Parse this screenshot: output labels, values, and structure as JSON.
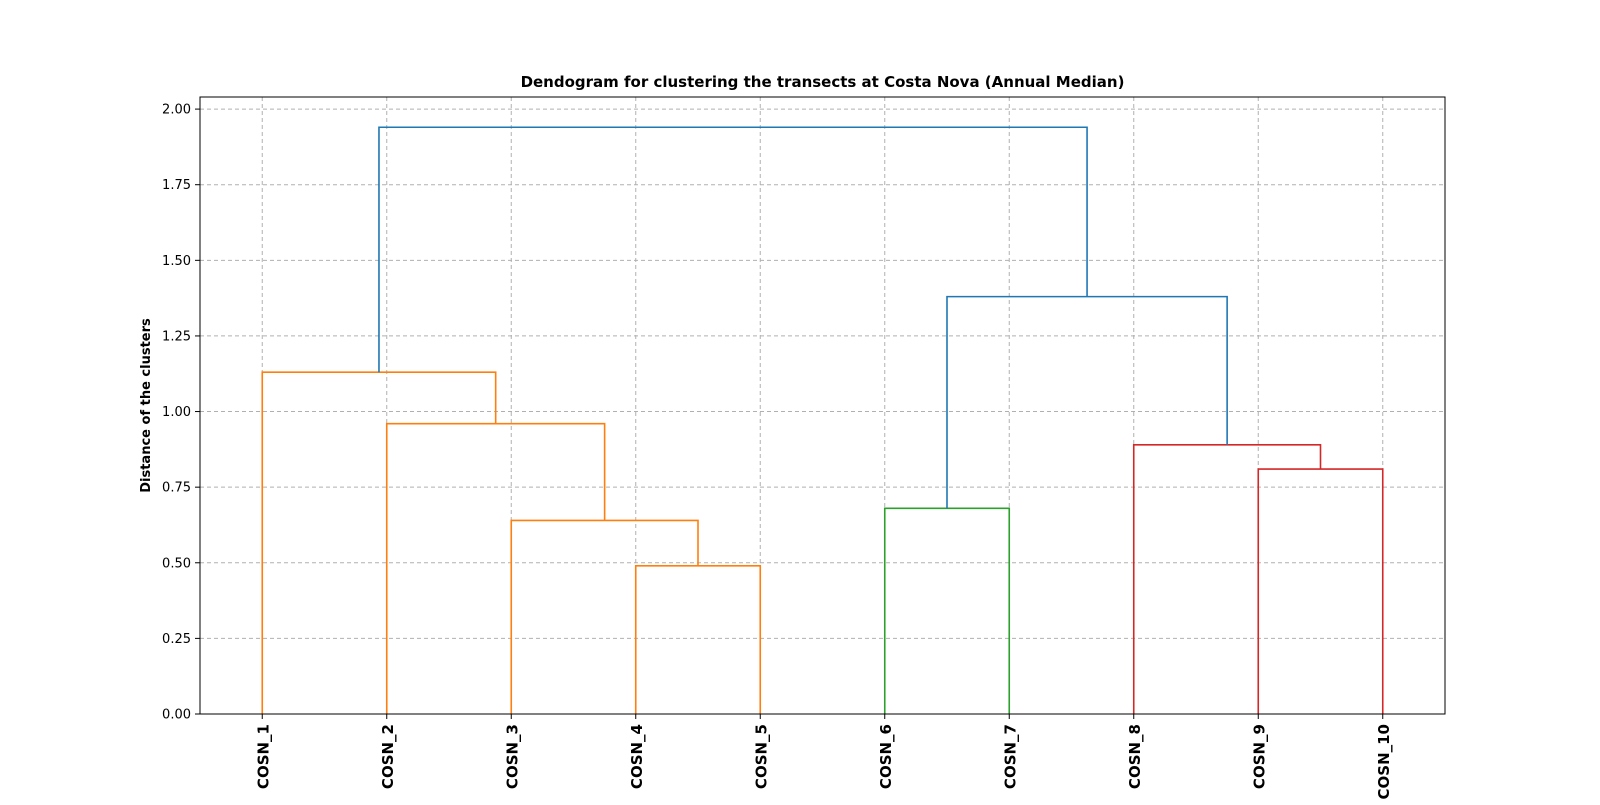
{
  "chart_data": {
    "type": "dendrogram",
    "title": "Dendogram for clustering the transects at Costa Nova (Annual Median)",
    "xlabel": "",
    "ylabel": "Distance of the clusters",
    "ylim": [
      0,
      2.04
    ],
    "yticks": [
      "0.00",
      "0.25",
      "0.50",
      "0.75",
      "1.00",
      "1.25",
      "1.50",
      "1.75",
      "2.00"
    ],
    "leaves": [
      "COSN_1",
      "COSN_2",
      "COSN_3",
      "COSN_4",
      "COSN_5",
      "COSN_6",
      "COSN_7",
      "COSN_8",
      "COSN_9",
      "COSN_10"
    ],
    "grid": true,
    "colors": {
      "c1": "#ff7f0e",
      "c2": "#2ca02c",
      "c3": "#d62728",
      "above": "#1f77b4"
    },
    "links": [
      {
        "left": [
          4,
          0.0
        ],
        "right": [
          5,
          0.0
        ],
        "height": 0.49,
        "color": "c1"
      },
      {
        "left": [
          3,
          0.0
        ],
        "right": [
          4.5,
          0.49
        ],
        "height": 0.64,
        "color": "c1"
      },
      {
        "left": [
          2,
          0.0
        ],
        "right": [
          3.75,
          0.64
        ],
        "height": 0.96,
        "color": "c1"
      },
      {
        "left": [
          1,
          0.0
        ],
        "right": [
          2.875,
          0.96
        ],
        "height": 1.13,
        "color": "c1"
      },
      {
        "left": [
          6,
          0.0
        ],
        "right": [
          7,
          0.0
        ],
        "height": 0.68,
        "color": "c2"
      },
      {
        "left": [
          9,
          0.0
        ],
        "right": [
          10,
          0.0
        ],
        "height": 0.81,
        "color": "c3"
      },
      {
        "left": [
          8,
          0.0
        ],
        "right": [
          9.5,
          0.81
        ],
        "height": 0.89,
        "color": "c3"
      },
      {
        "left": [
          6.5,
          0.68
        ],
        "right": [
          8.75,
          0.89
        ],
        "height": 1.38,
        "color": "above"
      },
      {
        "left": [
          1.9375,
          1.13
        ],
        "right": [
          7.625,
          1.38
        ],
        "height": 1.94,
        "color": "above"
      }
    ]
  }
}
